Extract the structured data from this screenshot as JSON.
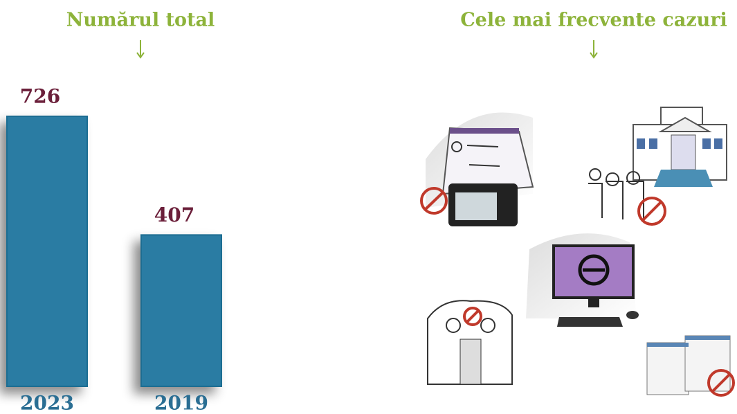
{
  "chart_data": {
    "type": "bar",
    "title": "Numărul total",
    "categories": [
      "2023",
      "2019"
    ],
    "values": [
      726,
      407
    ],
    "color": "#2b7ba3"
  },
  "illustrations": {
    "title": "Cele mai frecvente cazuri"
  }
}
